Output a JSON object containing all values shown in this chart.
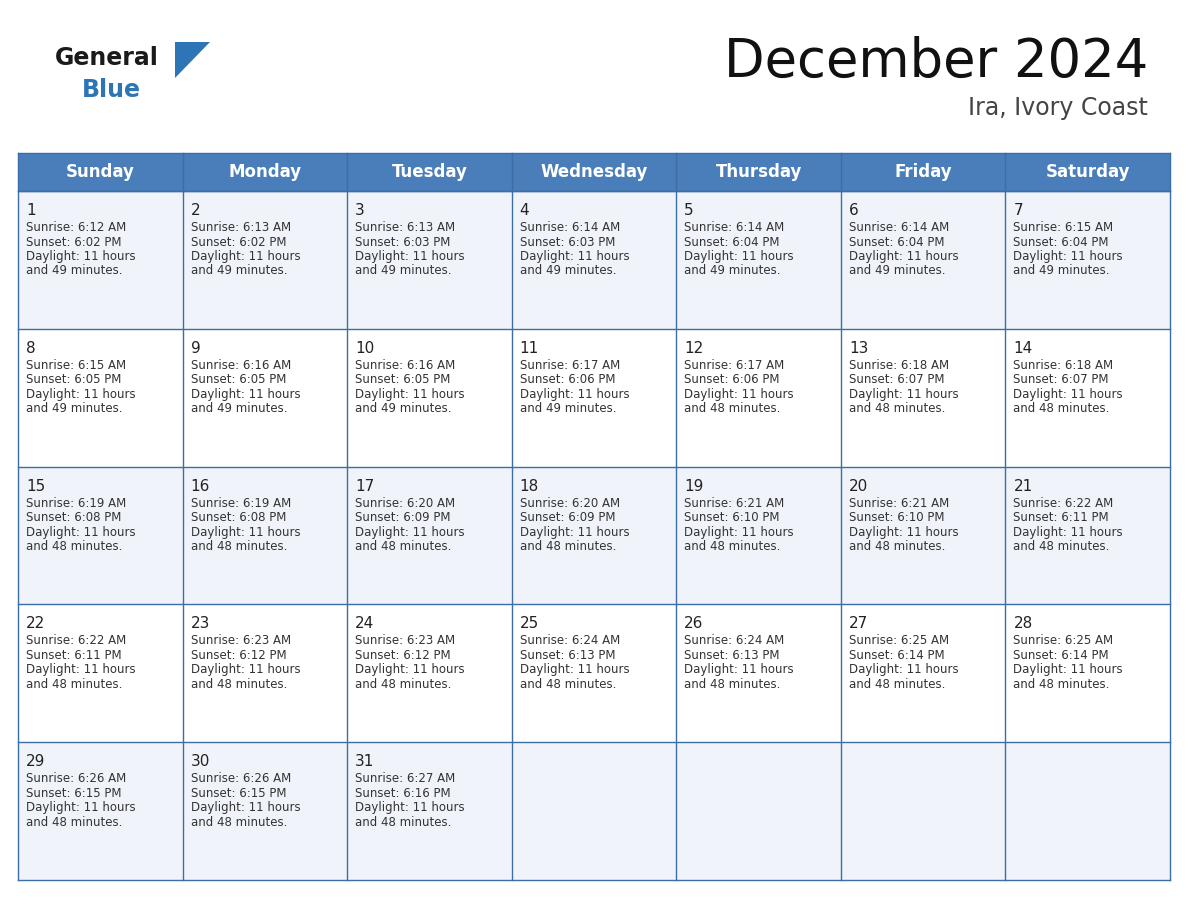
{
  "title": "December 2024",
  "subtitle": "Ira, Ivory Coast",
  "header_bg": "#4A7EBB",
  "header_text_color": "#FFFFFF",
  "cell_bg_light": "#F0F4FA",
  "cell_bg_white": "#FFFFFF",
  "border_color": "#3A6EA5",
  "text_color": "#333333",
  "day_num_color": "#222222",
  "logo_general_color": "#1A1A1A",
  "logo_blue_color": "#2E75B6",
  "title_color": "#111111",
  "subtitle_color": "#444444",
  "day_headers": [
    "Sunday",
    "Monday",
    "Tuesday",
    "Wednesday",
    "Thursday",
    "Friday",
    "Saturday"
  ],
  "title_fontsize": 38,
  "subtitle_fontsize": 17,
  "header_fontsize": 12,
  "day_num_fontsize": 11,
  "cell_fontsize": 8.5,
  "logo_fontsize_general": 17,
  "logo_fontsize_blue": 17,
  "weeks": [
    [
      {
        "day": 1,
        "sunrise": "6:12 AM",
        "sunset": "6:02 PM",
        "daylight_line1": "11 hours",
        "daylight_line2": "and 49 minutes."
      },
      {
        "day": 2,
        "sunrise": "6:13 AM",
        "sunset": "6:02 PM",
        "daylight_line1": "11 hours",
        "daylight_line2": "and 49 minutes."
      },
      {
        "day": 3,
        "sunrise": "6:13 AM",
        "sunset": "6:03 PM",
        "daylight_line1": "11 hours",
        "daylight_line2": "and 49 minutes."
      },
      {
        "day": 4,
        "sunrise": "6:14 AM",
        "sunset": "6:03 PM",
        "daylight_line1": "11 hours",
        "daylight_line2": "and 49 minutes."
      },
      {
        "day": 5,
        "sunrise": "6:14 AM",
        "sunset": "6:04 PM",
        "daylight_line1": "11 hours",
        "daylight_line2": "and 49 minutes."
      },
      {
        "day": 6,
        "sunrise": "6:14 AM",
        "sunset": "6:04 PM",
        "daylight_line1": "11 hours",
        "daylight_line2": "and 49 minutes."
      },
      {
        "day": 7,
        "sunrise": "6:15 AM",
        "sunset": "6:04 PM",
        "daylight_line1": "11 hours",
        "daylight_line2": "and 49 minutes."
      }
    ],
    [
      {
        "day": 8,
        "sunrise": "6:15 AM",
        "sunset": "6:05 PM",
        "daylight_line1": "11 hours",
        "daylight_line2": "and 49 minutes."
      },
      {
        "day": 9,
        "sunrise": "6:16 AM",
        "sunset": "6:05 PM",
        "daylight_line1": "11 hours",
        "daylight_line2": "and 49 minutes."
      },
      {
        "day": 10,
        "sunrise": "6:16 AM",
        "sunset": "6:05 PM",
        "daylight_line1": "11 hours",
        "daylight_line2": "and 49 minutes."
      },
      {
        "day": 11,
        "sunrise": "6:17 AM",
        "sunset": "6:06 PM",
        "daylight_line1": "11 hours",
        "daylight_line2": "and 49 minutes."
      },
      {
        "day": 12,
        "sunrise": "6:17 AM",
        "sunset": "6:06 PM",
        "daylight_line1": "11 hours",
        "daylight_line2": "and 48 minutes."
      },
      {
        "day": 13,
        "sunrise": "6:18 AM",
        "sunset": "6:07 PM",
        "daylight_line1": "11 hours",
        "daylight_line2": "and 48 minutes."
      },
      {
        "day": 14,
        "sunrise": "6:18 AM",
        "sunset": "6:07 PM",
        "daylight_line1": "11 hours",
        "daylight_line2": "and 48 minutes."
      }
    ],
    [
      {
        "day": 15,
        "sunrise": "6:19 AM",
        "sunset": "6:08 PM",
        "daylight_line1": "11 hours",
        "daylight_line2": "and 48 minutes."
      },
      {
        "day": 16,
        "sunrise": "6:19 AM",
        "sunset": "6:08 PM",
        "daylight_line1": "11 hours",
        "daylight_line2": "and 48 minutes."
      },
      {
        "day": 17,
        "sunrise": "6:20 AM",
        "sunset": "6:09 PM",
        "daylight_line1": "11 hours",
        "daylight_line2": "and 48 minutes."
      },
      {
        "day": 18,
        "sunrise": "6:20 AM",
        "sunset": "6:09 PM",
        "daylight_line1": "11 hours",
        "daylight_line2": "and 48 minutes."
      },
      {
        "day": 19,
        "sunrise": "6:21 AM",
        "sunset": "6:10 PM",
        "daylight_line1": "11 hours",
        "daylight_line2": "and 48 minutes."
      },
      {
        "day": 20,
        "sunrise": "6:21 AM",
        "sunset": "6:10 PM",
        "daylight_line1": "11 hours",
        "daylight_line2": "and 48 minutes."
      },
      {
        "day": 21,
        "sunrise": "6:22 AM",
        "sunset": "6:11 PM",
        "daylight_line1": "11 hours",
        "daylight_line2": "and 48 minutes."
      }
    ],
    [
      {
        "day": 22,
        "sunrise": "6:22 AM",
        "sunset": "6:11 PM",
        "daylight_line1": "11 hours",
        "daylight_line2": "and 48 minutes."
      },
      {
        "day": 23,
        "sunrise": "6:23 AM",
        "sunset": "6:12 PM",
        "daylight_line1": "11 hours",
        "daylight_line2": "and 48 minutes."
      },
      {
        "day": 24,
        "sunrise": "6:23 AM",
        "sunset": "6:12 PM",
        "daylight_line1": "11 hours",
        "daylight_line2": "and 48 minutes."
      },
      {
        "day": 25,
        "sunrise": "6:24 AM",
        "sunset": "6:13 PM",
        "daylight_line1": "11 hours",
        "daylight_line2": "and 48 minutes."
      },
      {
        "day": 26,
        "sunrise": "6:24 AM",
        "sunset": "6:13 PM",
        "daylight_line1": "11 hours",
        "daylight_line2": "and 48 minutes."
      },
      {
        "day": 27,
        "sunrise": "6:25 AM",
        "sunset": "6:14 PM",
        "daylight_line1": "11 hours",
        "daylight_line2": "and 48 minutes."
      },
      {
        "day": 28,
        "sunrise": "6:25 AM",
        "sunset": "6:14 PM",
        "daylight_line1": "11 hours",
        "daylight_line2": "and 48 minutes."
      }
    ],
    [
      {
        "day": 29,
        "sunrise": "6:26 AM",
        "sunset": "6:15 PM",
        "daylight_line1": "11 hours",
        "daylight_line2": "and 48 minutes."
      },
      {
        "day": 30,
        "sunrise": "6:26 AM",
        "sunset": "6:15 PM",
        "daylight_line1": "11 hours",
        "daylight_line2": "and 48 minutes."
      },
      {
        "day": 31,
        "sunrise": "6:27 AM",
        "sunset": "6:16 PM",
        "daylight_line1": "11 hours",
        "daylight_line2": "and 48 minutes."
      },
      null,
      null,
      null,
      null
    ]
  ]
}
